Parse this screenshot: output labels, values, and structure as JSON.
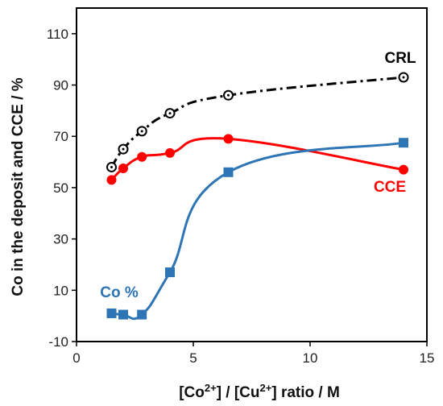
{
  "chart_data": {
    "type": "line",
    "xlabel": "[Co2+] / [Cu2+] ratio / M",
    "xlabel_parts": {
      "lead": "[Co",
      "sup1": "2+",
      "mid": "] / [Cu",
      "sup2": "2+",
      "tail": "] ratio / M"
    },
    "ylabel": "Co in the deposit and CCE / %",
    "xlim": [
      0,
      15
    ],
    "ylim": [
      -10,
      120
    ],
    "xticks": [
      "0",
      "5",
      "10",
      "15"
    ],
    "yticks": [
      "-10",
      "10",
      "30",
      "50",
      "70",
      "90",
      "110"
    ],
    "grid": false,
    "series": [
      {
        "name": "CRL",
        "color": "#000000",
        "line_style": "dash-dot",
        "marker": "open-circle-dot",
        "x": [
          1.5,
          2.0,
          2.8,
          4.0,
          6.5,
          14.0
        ],
        "y": [
          58,
          65,
          72,
          79,
          86,
          93
        ]
      },
      {
        "name": "CCE",
        "color": "#ff0000",
        "line_style": "solid",
        "marker": "filled-circle",
        "x": [
          1.5,
          2.0,
          2.8,
          4.0,
          6.5,
          14.0
        ],
        "y": [
          53,
          57.5,
          62,
          63.5,
          69,
          57
        ]
      },
      {
        "name": "Co %",
        "color": "#2e75b6",
        "line_style": "solid",
        "marker": "filled-square",
        "x": [
          1.5,
          2.0,
          2.8,
          4.0,
          6.5,
          14.0
        ],
        "y": [
          1,
          0.5,
          0.5,
          17,
          56,
          67.5
        ]
      }
    ]
  }
}
